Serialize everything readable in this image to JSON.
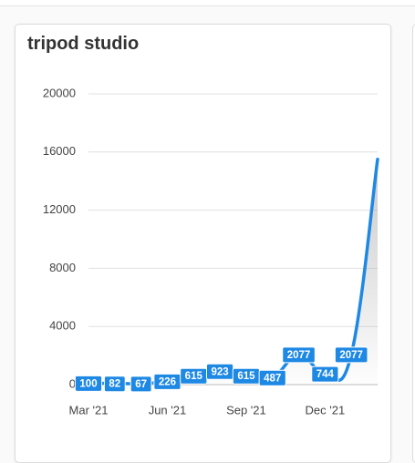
{
  "chart_data": {
    "type": "line",
    "title": "tripod studio",
    "categories": [
      "Mar '21",
      null,
      null,
      "Jun '21",
      null,
      null,
      "Sep '21",
      null,
      null,
      "Dec '21",
      null,
      null
    ],
    "values": [
      100,
      82,
      67,
      226,
      615,
      923,
      615,
      487,
      2077,
      744,
      2077,
      15500
    ],
    "color": "#1e88e5",
    "ylim": [
      0,
      20000
    ],
    "yticks": [
      0,
      4000,
      8000,
      12000,
      16000,
      20000
    ],
    "grid": true
  }
}
